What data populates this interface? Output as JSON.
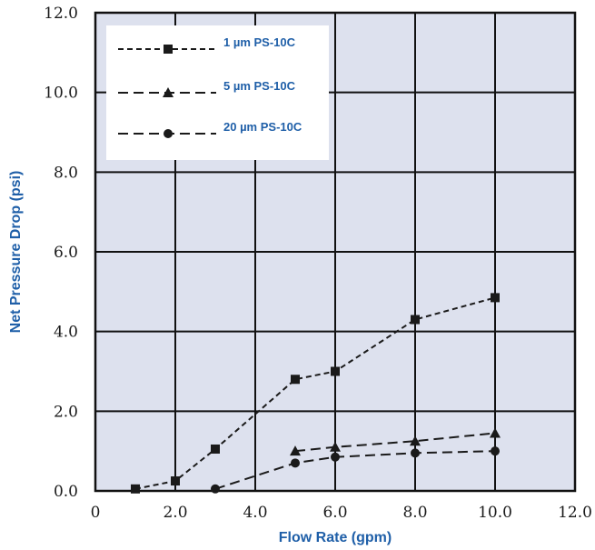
{
  "chart_data": {
    "type": "line",
    "title": "",
    "xlabel": "Flow Rate (gpm)",
    "ylabel": "Net Pressure Drop (psi)",
    "xlim": [
      0,
      12
    ],
    "ylim": [
      0,
      12
    ],
    "x_ticks": [
      "0",
      "2.0",
      "4.0",
      "6.0",
      "8.0",
      "10.0",
      "12.0"
    ],
    "y_ticks": [
      "0.0",
      "2.0",
      "4.0",
      "6.0",
      "8.0",
      "10.0",
      "12.0"
    ],
    "grid": true,
    "legend_position": "top-left",
    "colors": {
      "plot_background": "#dde1ee",
      "grid": "#111111",
      "axis_title": "#1f5fa8",
      "series_line": "#1a1a1a",
      "legend_background": "#ffffff"
    },
    "series": [
      {
        "name": "1 µm PS-10C",
        "marker": "square",
        "dash": "short",
        "points": [
          [
            1.0,
            0.05
          ],
          [
            2.0,
            0.25
          ],
          [
            3.0,
            1.05
          ],
          [
            5.0,
            2.8
          ],
          [
            6.0,
            3.0
          ],
          [
            8.0,
            4.3
          ],
          [
            10.0,
            4.85
          ]
        ]
      },
      {
        "name": "5 µm PS-10C",
        "marker": "triangle",
        "dash": "long",
        "points": [
          [
            5.0,
            1.0
          ],
          [
            6.0,
            1.1
          ],
          [
            8.0,
            1.25
          ],
          [
            10.0,
            1.45
          ]
        ]
      },
      {
        "name": "20 µm PS-10C",
        "marker": "circle",
        "dash": "long",
        "points": [
          [
            3.0,
            0.05
          ],
          [
            5.0,
            0.7
          ],
          [
            6.0,
            0.85
          ],
          [
            8.0,
            0.95
          ],
          [
            10.0,
            1.0
          ]
        ]
      }
    ]
  }
}
